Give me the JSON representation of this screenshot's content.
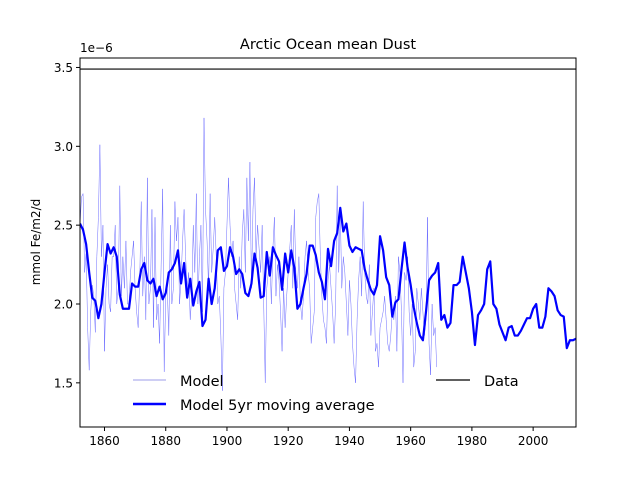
{
  "chart_data": {
    "type": "line",
    "title": "Arctic Ocean  mean Dust",
    "xlabel": "",
    "ylabel": "mmol Fe/m2/d",
    "y_offset_label": "1e−6",
    "xlim": [
      1852,
      2014
    ],
    "ylim": [
      1.22,
      3.56
    ],
    "x_ticks": [
      1860,
      1880,
      1900,
      1920,
      1940,
      1960,
      1980,
      2000
    ],
    "x_tick_labels": [
      "1860",
      "1880",
      "1900",
      "1920",
      "1940",
      "1960",
      "1980",
      "2000"
    ],
    "y_ticks": [
      1.5,
      2.0,
      2.5,
      3.0,
      3.5
    ],
    "y_tick_labels": [
      "1.5",
      "2.0",
      "2.5",
      "3.0",
      "3.5"
    ],
    "grid": false,
    "legend": [
      {
        "label": "Model",
        "color": "#b0b0ee",
        "position": "lower-left"
      },
      {
        "label": "Model 5yr moving average",
        "color": "#0000ff",
        "position": "lower-left"
      },
      {
        "label": "Data",
        "color": "#000000",
        "position": "lower-right"
      }
    ],
    "series": [
      {
        "name": "Model",
        "color": "#5555ff",
        "x_start": 1852,
        "x_step": 0.5,
        "values": [
          2.5,
          2.68,
          2.7,
          2.2,
          2.32,
          1.85,
          1.58,
          1.95,
          2.12,
          2.05,
          1.82,
          2.3,
          2.55,
          3.01,
          2.3,
          2.5,
          1.7,
          2.1,
          2.25,
          2.0,
          1.95,
          2.3,
          2.3,
          2.5,
          2.0,
          2.1,
          2.75,
          2.05,
          2.3,
          2.1,
          2.4,
          2.0,
          2.0,
          2.2,
          2.3,
          2.4,
          2.1,
          1.95,
          1.85,
          2.15,
          2.65,
          2.05,
          2.3,
          1.9,
          2.8,
          2.0,
          2.1,
          2.6,
          1.85,
          2.55,
          1.9,
          2.0,
          1.75,
          2.25,
          2.73,
          1.57,
          2.05,
          2.1,
          1.8,
          2.5,
          2.0,
          2.1,
          2.65,
          2.4,
          2.55,
          2.0,
          2.15,
          2.4,
          2.6,
          2.3,
          2.1,
          2.2,
          1.9,
          2.05,
          2.5,
          2.2,
          2.7,
          2.0,
          2.3,
          2.5,
          1.95,
          3.18,
          2.6,
          2.4,
          2.1,
          2.7,
          2.2,
          2.35,
          2.55,
          2.3,
          2.0,
          2.05,
          1.8,
          1.45,
          2.1,
          2.2,
          2.5,
          2.8,
          2.5,
          2.3,
          2.4,
          2.1,
          2.0,
          1.9,
          2.3,
          2.1,
          2.45,
          2.6,
          2.2,
          2.8,
          2.4,
          2.9,
          2.1,
          2.6,
          2.8,
          2.3,
          2.5,
          2.35,
          2.2,
          2.5,
          2.0,
          1.5,
          2.1,
          2.2,
          2.3,
          2.0,
          2.35,
          2.55,
          2.05,
          2.25,
          2.15,
          1.95,
          1.7,
          2.1,
          1.85,
          2.05,
          2.2,
          2.35,
          2.5,
          2.1,
          2.6,
          2.2,
          2.1,
          2.3,
          2.0,
          1.9,
          2.05,
          2.3,
          2.4,
          2.2,
          2.1,
          1.75,
          1.85,
          1.95,
          2.55,
          2.65,
          2.7,
          2.3,
          2.05,
          1.9,
          1.85,
          1.75,
          2.15,
          2.25,
          2.1,
          1.95,
          1.75,
          2.0,
          2.75,
          2.2,
          2.6,
          2.1,
          2.3,
          2.2,
          2.0,
          1.8,
          2.15,
          2.0,
          1.75,
          1.6,
          1.5,
          1.9,
          2.15,
          2.3,
          2.05,
          2.65,
          2.2,
          2.05,
          2.0,
          2.25,
          1.8,
          1.95,
          2.1,
          1.7,
          1.75,
          1.6,
          1.85,
          1.9,
          1.95,
          2.05,
          1.9,
          1.75,
          1.7,
          1.8,
          1.95,
          1.9,
          2.05,
          1.7,
          2.3,
          2.2,
          1.95,
          1.5,
          2.2,
          2.15,
          2.3,
          1.95,
          1.8,
          2.0,
          1.6,
          1.7,
          2.1,
          2.0,
          1.9,
          2.1,
          1.95,
          1.8,
          1.9,
          2.55,
          1.75,
          1.55,
          2.0,
          1.8,
          1.85,
          1.6
        ]
      },
      {
        "name": "Model 5yr moving average",
        "color": "#0000ff",
        "points": [
          [
            1852,
            2.51
          ],
          [
            1853,
            2.47
          ],
          [
            1854,
            2.38
          ],
          [
            1855,
            2.2
          ],
          [
            1856,
            2.04
          ],
          [
            1857,
            2.02
          ],
          [
            1858,
            1.91
          ],
          [
            1859,
            2.0
          ],
          [
            1860,
            2.2
          ],
          [
            1861,
            2.38
          ],
          [
            1862,
            2.32
          ],
          [
            1863,
            2.36
          ],
          [
            1864,
            2.3
          ],
          [
            1865,
            2.06
          ],
          [
            1866,
            1.97
          ],
          [
            1867,
            1.97
          ],
          [
            1868,
            1.97
          ],
          [
            1869,
            2.13
          ],
          [
            1870,
            2.11
          ],
          [
            1871,
            2.11
          ],
          [
            1872,
            2.22
          ],
          [
            1873,
            2.26
          ],
          [
            1874,
            2.15
          ],
          [
            1875,
            2.13
          ],
          [
            1876,
            2.16
          ],
          [
            1877,
            2.05
          ],
          [
            1878,
            2.11
          ],
          [
            1879,
            2.03
          ],
          [
            1880,
            2.07
          ],
          [
            1881,
            2.2
          ],
          [
            1882,
            2.22
          ],
          [
            1883,
            2.26
          ],
          [
            1884,
            2.34
          ],
          [
            1885,
            2.13
          ],
          [
            1886,
            2.26
          ],
          [
            1887,
            2.04
          ],
          [
            1888,
            2.16
          ],
          [
            1889,
            1.99
          ],
          [
            1890,
            2.08
          ],
          [
            1891,
            2.14
          ],
          [
            1892,
            1.86
          ],
          [
            1893,
            1.9
          ],
          [
            1894,
            2.16
          ],
          [
            1895,
            2.0
          ],
          [
            1896,
            2.1
          ],
          [
            1897,
            2.34
          ],
          [
            1898,
            2.36
          ],
          [
            1899,
            2.21
          ],
          [
            1900,
            2.24
          ],
          [
            1901,
            2.36
          ],
          [
            1902,
            2.3
          ],
          [
            1903,
            2.19
          ],
          [
            1904,
            2.22
          ],
          [
            1905,
            2.19
          ],
          [
            1906,
            2.07
          ],
          [
            1907,
            2.05
          ],
          [
            1908,
            2.13
          ],
          [
            1909,
            2.32
          ],
          [
            1910,
            2.23
          ],
          [
            1911,
            2.04
          ],
          [
            1912,
            2.05
          ],
          [
            1913,
            2.33
          ],
          [
            1914,
            2.18
          ],
          [
            1915,
            2.36
          ],
          [
            1916,
            2.31
          ],
          [
            1917,
            2.27
          ],
          [
            1918,
            2.09
          ],
          [
            1919,
            2.32
          ],
          [
            1920,
            2.2
          ],
          [
            1921,
            2.34
          ],
          [
            1922,
            2.23
          ],
          [
            1923,
            1.97
          ],
          [
            1924,
            2.0
          ],
          [
            1925,
            2.1
          ],
          [
            1926,
            2.19
          ],
          [
            1927,
            2.37
          ],
          [
            1928,
            2.37
          ],
          [
            1929,
            2.31
          ],
          [
            1930,
            2.2
          ],
          [
            1931,
            2.14
          ],
          [
            1932,
            2.03
          ],
          [
            1933,
            2.35
          ],
          [
            1934,
            2.24
          ],
          [
            1935,
            2.4
          ],
          [
            1936,
            2.45
          ],
          [
            1937,
            2.61
          ],
          [
            1938,
            2.46
          ],
          [
            1939,
            2.51
          ],
          [
            1940,
            2.37
          ],
          [
            1941,
            2.33
          ],
          [
            1942,
            2.36
          ],
          [
            1943,
            2.35
          ],
          [
            1944,
            2.34
          ],
          [
            1945,
            2.22
          ],
          [
            1946,
            2.15
          ],
          [
            1947,
            2.09
          ],
          [
            1948,
            2.06
          ],
          [
            1949,
            2.12
          ],
          [
            1950,
            2.43
          ],
          [
            1951,
            2.34
          ],
          [
            1952,
            2.17
          ],
          [
            1953,
            2.12
          ],
          [
            1954,
            1.92
          ],
          [
            1955,
            2.01
          ],
          [
            1956,
            2.03
          ],
          [
            1957,
            2.22
          ],
          [
            1958,
            2.39
          ],
          [
            1959,
            2.23
          ],
          [
            1960,
            2.12
          ],
          [
            1961,
            1.98
          ],
          [
            1962,
            1.88
          ],
          [
            1963,
            1.8
          ],
          [
            1964,
            1.77
          ],
          [
            1965,
            1.95
          ],
          [
            1966,
            2.15
          ],
          [
            1967,
            2.18
          ],
          [
            1968,
            2.2
          ],
          [
            1969,
            2.26
          ],
          [
            1970,
            1.9
          ],
          [
            1971,
            1.93
          ],
          [
            1972,
            1.85
          ],
          [
            1973,
            1.88
          ],
          [
            1974,
            2.12
          ],
          [
            1975,
            2.12
          ],
          [
            1976,
            2.14
          ],
          [
            1977,
            2.3
          ],
          [
            1978,
            2.2
          ],
          [
            1979,
            2.1
          ],
          [
            1980,
            1.95
          ],
          [
            1981,
            1.74
          ],
          [
            1982,
            1.93
          ],
          [
            1983,
            1.96
          ],
          [
            1984,
            2.0
          ],
          [
            1985,
            2.22
          ],
          [
            1986,
            2.27
          ],
          [
            1987,
            2.0
          ],
          [
            1988,
            1.97
          ],
          [
            1989,
            1.87
          ],
          [
            1990,
            1.82
          ],
          [
            1991,
            1.77
          ],
          [
            1992,
            1.85
          ],
          [
            1993,
            1.86
          ],
          [
            1994,
            1.8
          ],
          [
            1995,
            1.8
          ],
          [
            1996,
            1.83
          ],
          [
            1997,
            1.87
          ],
          [
            1998,
            1.91
          ],
          [
            1999,
            1.91
          ],
          [
            2000,
            1.97
          ],
          [
            2001,
            2.0
          ],
          [
            2002,
            1.85
          ],
          [
            2003,
            1.85
          ],
          [
            2004,
            1.92
          ],
          [
            2005,
            2.1
          ],
          [
            2006,
            2.08
          ],
          [
            2007,
            2.05
          ],
          [
            2008,
            1.96
          ],
          [
            2009,
            1.93
          ],
          [
            2010,
            1.92
          ],
          [
            2011,
            1.72
          ],
          [
            2012,
            1.77
          ],
          [
            2013,
            1.77
          ],
          [
            2014,
            1.78
          ]
        ]
      },
      {
        "name": "Data",
        "color": "#000000",
        "y": 3.49
      }
    ]
  }
}
